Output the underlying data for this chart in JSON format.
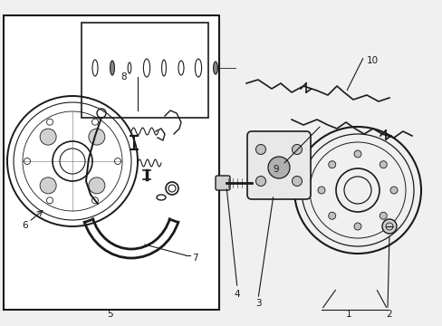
{
  "bg_color": "#f0f0f0",
  "white": "#ffffff",
  "black": "#000000",
  "line_color": "#1a1a1a",
  "box_bg": "#e8e8e8",
  "fig_width": 4.89,
  "fig_height": 3.6,
  "dpi": 100
}
